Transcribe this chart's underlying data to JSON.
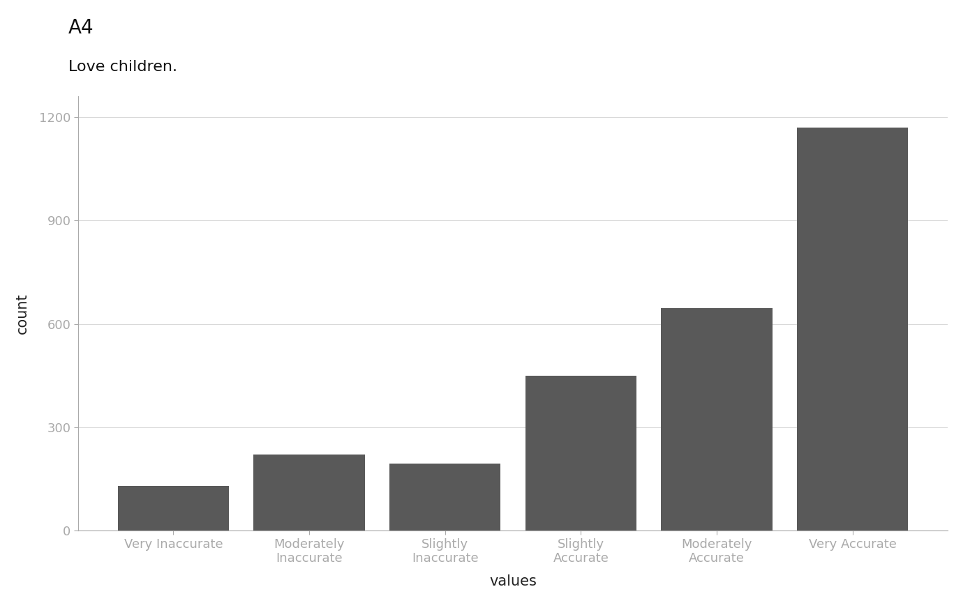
{
  "title": "A4",
  "subtitle": "Love children.",
  "xlabel": "values",
  "ylabel": "count",
  "categories": [
    "Very Inaccurate",
    "Moderately\nInaccurate",
    "Slightly\nInaccurate",
    "Slightly\nAccurate",
    "Moderately\nAccurate",
    "Very Accurate"
  ],
  "values": [
    130,
    220,
    195,
    450,
    645,
    1170
  ],
  "bar_color": "#595959",
  "background_color": "#ffffff",
  "grid_color": "#d9d9d9",
  "ylim": [
    0,
    1260
  ],
  "yticks": [
    0,
    300,
    600,
    900,
    1200
  ],
  "title_fontsize": 20,
  "subtitle_fontsize": 16,
  "axis_label_fontsize": 15,
  "tick_fontsize": 13
}
